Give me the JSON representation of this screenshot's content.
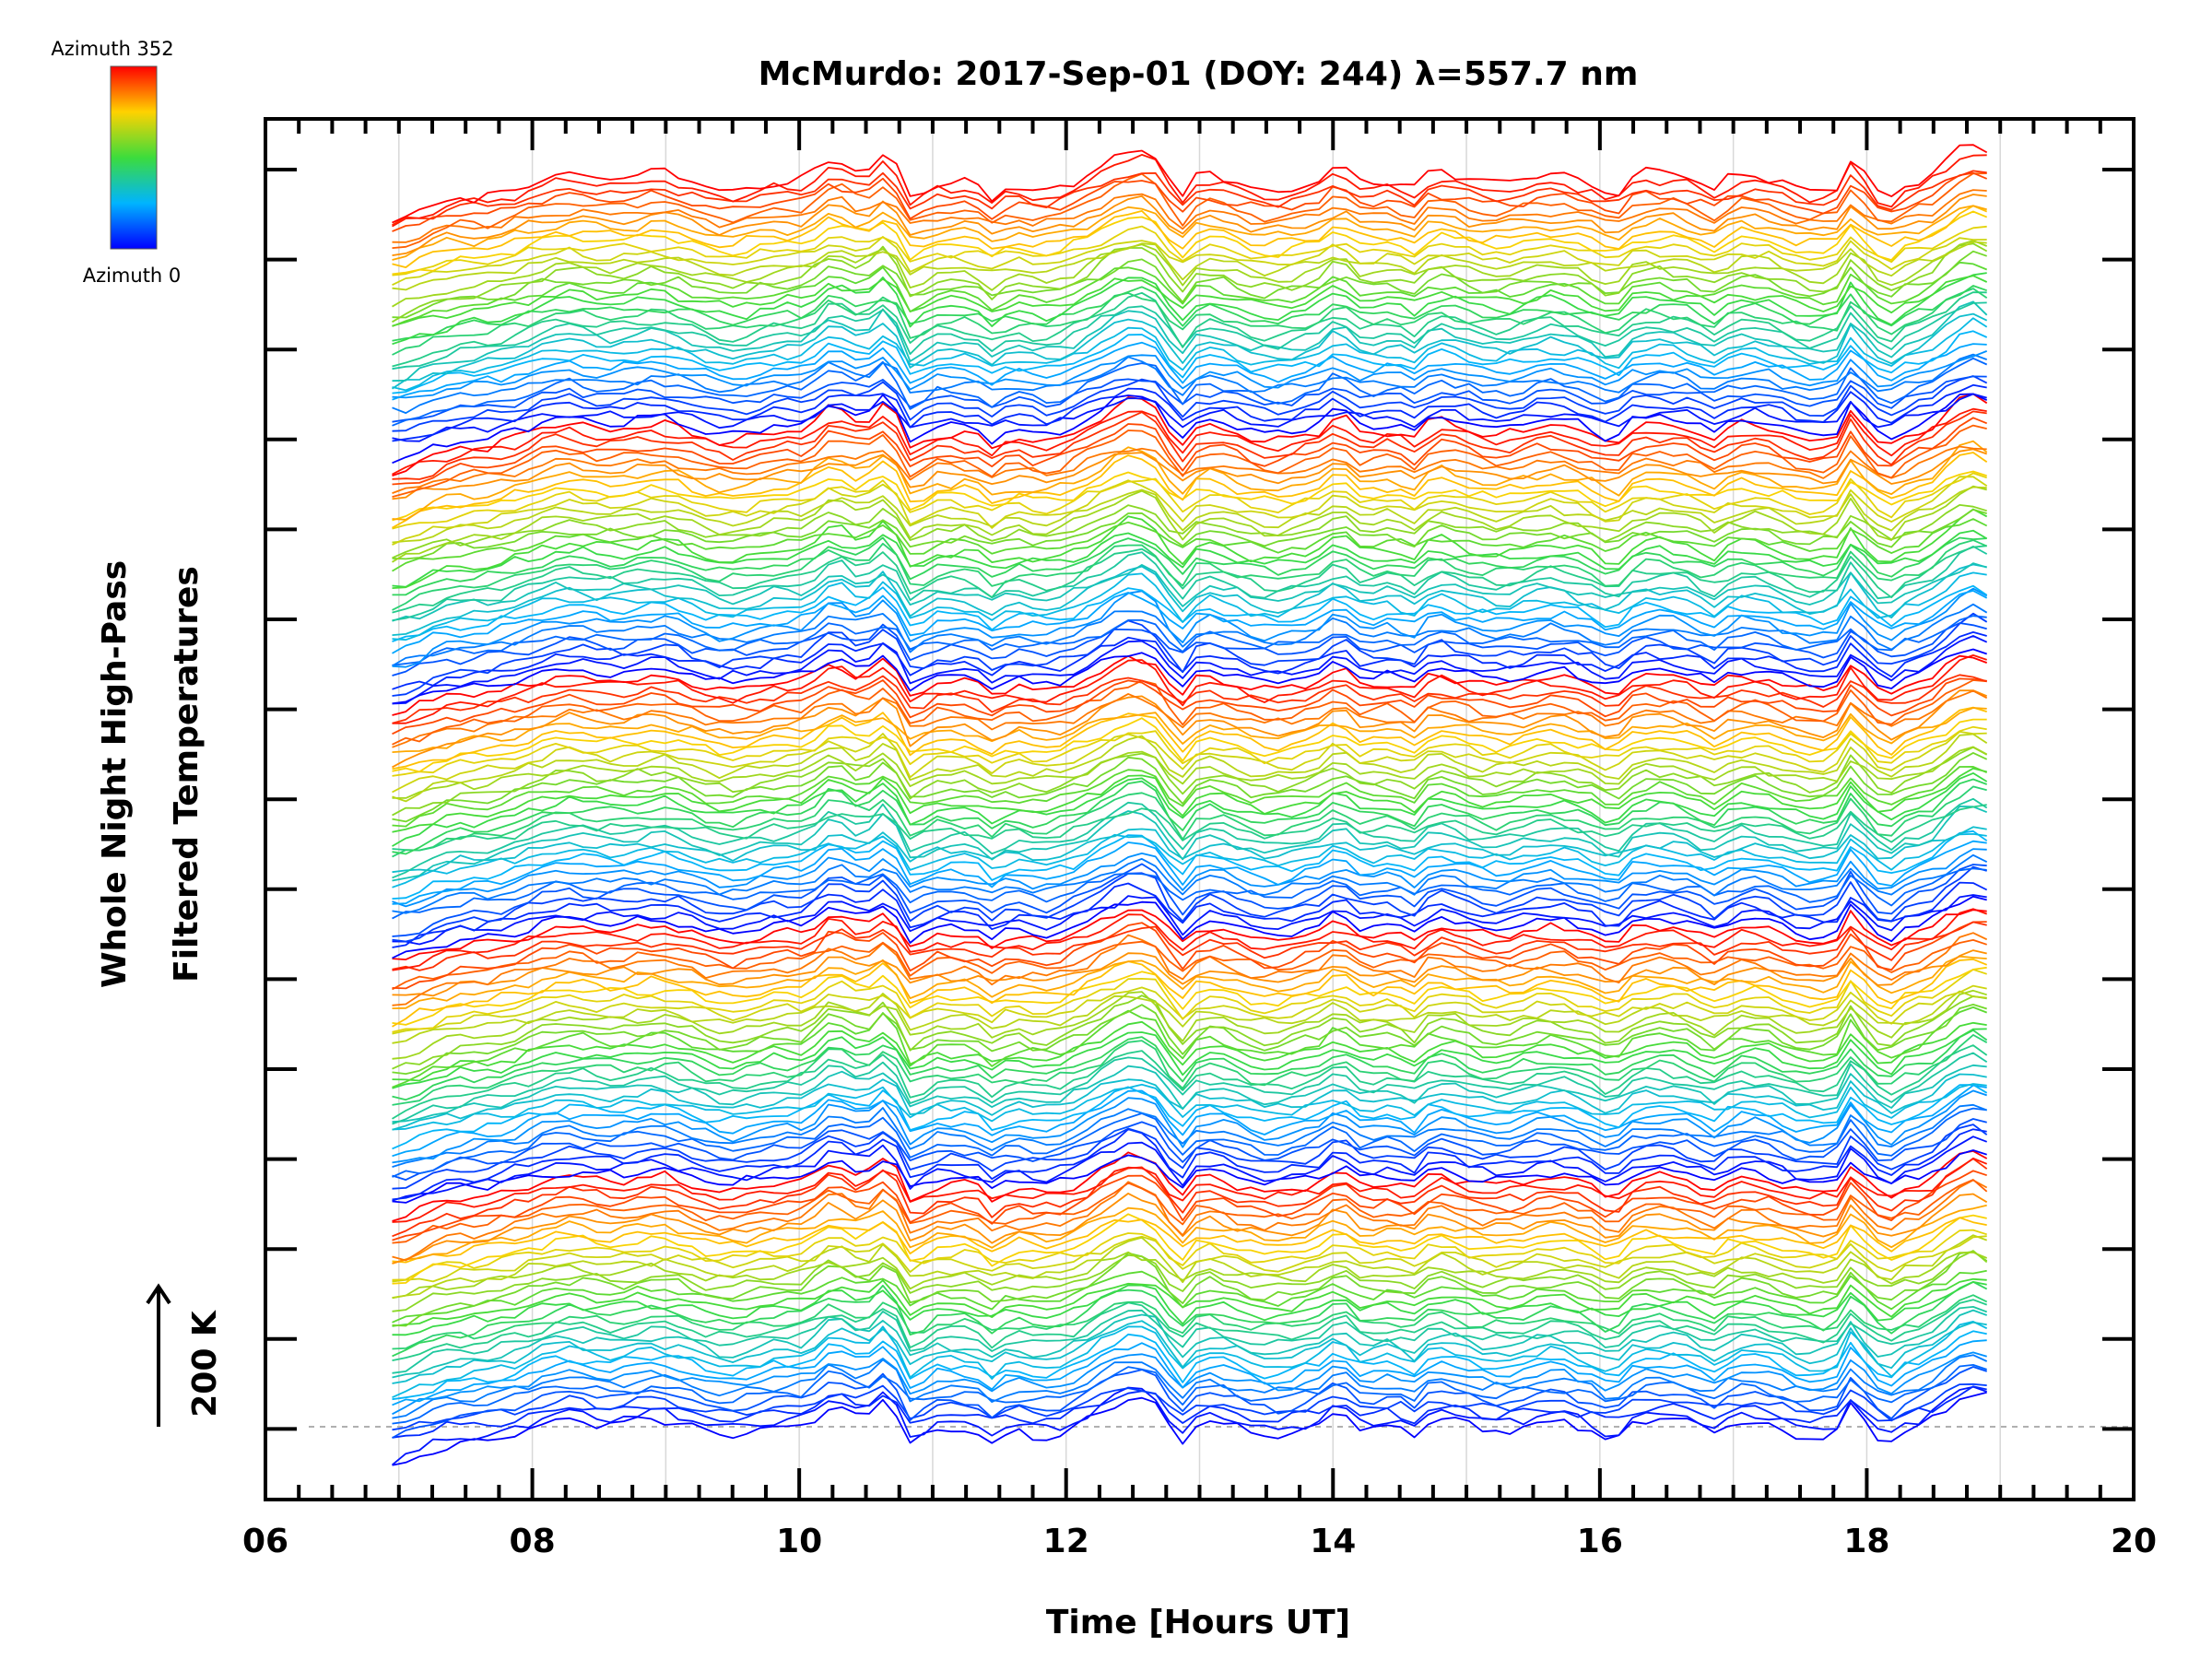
{
  "chart_data": {
    "type": "line",
    "title": "McMurdo: 2017-Sep-01 (DOY: 244) λ=557.7 nm",
    "xlabel": "Time [Hours UT]",
    "ylabel_line1": "Whole Night High-Pass",
    "ylabel_line2": "Filtered Temperatures",
    "xlim": [
      6,
      20
    ],
    "xticks": [
      "06",
      "08",
      "10",
      "12",
      "14",
      "16",
      "18",
      "20"
    ],
    "scale_bar_label": "200 K",
    "legend": {
      "top_label": "Azimuth 352",
      "bottom_label": "Azimuth 0",
      "colormap": "rainbow (blue → green → yellow → red)"
    },
    "series_count": 180,
    "azimuth_range": [
      0,
      352
    ],
    "trace_color": "#0b39e6",
    "time_range": [
      6.95,
      18.9
    ],
    "events": [
      {
        "t": 10.25,
        "amp": 22,
        "w": 0.15
      },
      {
        "t": 10.65,
        "amp": 14,
        "w": 0.1
      },
      {
        "t": 10.85,
        "amp": -22,
        "w": 0.1
      },
      {
        "t": 11.45,
        "amp": -14,
        "w": 0.1
      },
      {
        "t": 12.55,
        "amp": 24,
        "w": 0.25
      },
      {
        "t": 12.85,
        "amp": -24,
        "w": 0.1
      },
      {
        "t": 14.05,
        "amp": 14,
        "w": 0.1
      },
      {
        "t": 14.6,
        "amp": -16,
        "w": 0.1
      },
      {
        "t": 15.75,
        "amp": 10,
        "w": 0.25
      },
      {
        "t": 16.1,
        "amp": -12,
        "w": 0.08
      },
      {
        "t": 16.85,
        "amp": -10,
        "w": 0.1
      },
      {
        "t": 17.9,
        "amp": 24,
        "w": 0.07
      },
      {
        "t": 18.15,
        "amp": -14,
        "w": 0.1
      },
      {
        "t": 18.8,
        "amp": 22,
        "w": 0.25
      }
    ]
  }
}
